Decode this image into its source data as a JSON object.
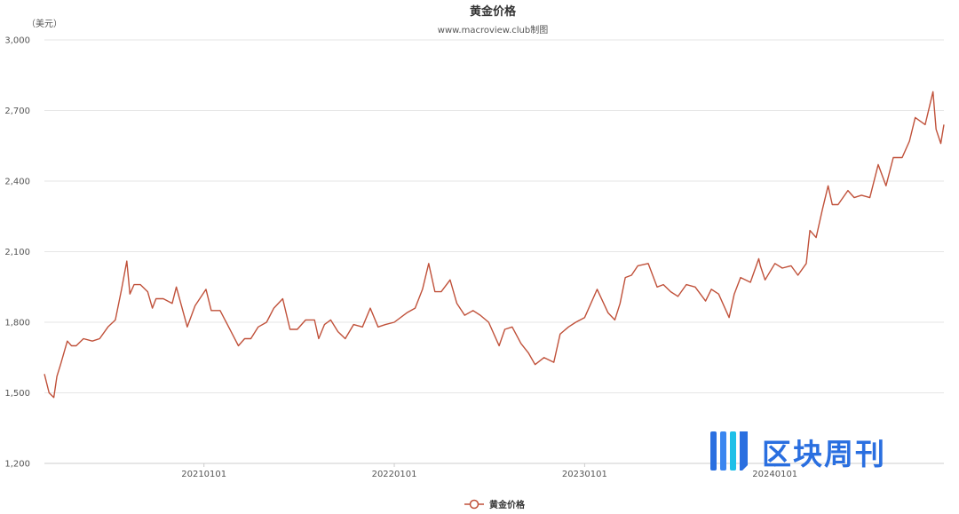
{
  "chart_data": {
    "type": "line",
    "title": "黄金价格",
    "subtitle": "www.macroview.club制图",
    "ylabel": "（美元）",
    "ylim": [
      1200,
      3000
    ],
    "yticks": [
      "1,200",
      "1,500",
      "1,800",
      "2,100",
      "2,400",
      "2,700",
      "3,000"
    ],
    "ytick_values": [
      1200,
      1500,
      1800,
      2100,
      2400,
      2700,
      3000
    ],
    "xlim": [
      "2020-03-01",
      "2024-11-20"
    ],
    "xticks": [
      "20210101",
      "20220101",
      "20230101",
      "20240101"
    ],
    "xtick_dates": [
      "2021-01-01",
      "2022-01-01",
      "2023-01-01",
      "2024-01-01"
    ],
    "grid": true,
    "legend_position": "bottom-center",
    "series": [
      {
        "name": "黄金价格",
        "color": "#c0513a",
        "x": [
          "2020-03-01",
          "2020-03-10",
          "2020-03-19",
          "2020-03-25",
          "2020-04-01",
          "2020-04-14",
          "2020-04-22",
          "2020-05-01",
          "2020-05-15",
          "2020-06-01",
          "2020-06-15",
          "2020-07-01",
          "2020-07-15",
          "2020-07-27",
          "2020-08-06",
          "2020-08-12",
          "2020-08-20",
          "2020-09-01",
          "2020-09-15",
          "2020-09-24",
          "2020-10-01",
          "2020-10-15",
          "2020-11-01",
          "2020-11-09",
          "2020-11-30",
          "2020-12-15",
          "2021-01-05",
          "2021-01-15",
          "2021-02-01",
          "2021-02-15",
          "2021-03-08",
          "2021-03-20",
          "2021-04-01",
          "2021-04-15",
          "2021-05-01",
          "2021-05-15",
          "2021-06-01",
          "2021-06-15",
          "2021-06-29",
          "2021-07-15",
          "2021-08-01",
          "2021-08-09",
          "2021-08-20",
          "2021-09-01",
          "2021-09-15",
          "2021-09-29",
          "2021-10-15",
          "2021-11-01",
          "2021-11-16",
          "2021-12-01",
          "2021-12-15",
          "2022-01-01",
          "2022-01-25",
          "2022-02-10",
          "2022-02-24",
          "2022-03-08",
          "2022-03-20",
          "2022-04-01",
          "2022-04-18",
          "2022-05-01",
          "2022-05-16",
          "2022-06-01",
          "2022-06-15",
          "2022-07-01",
          "2022-07-21",
          "2022-08-01",
          "2022-08-15",
          "2022-09-01",
          "2022-09-15",
          "2022-09-28",
          "2022-10-15",
          "2022-11-03",
          "2022-11-15",
          "2022-12-01",
          "2022-12-15",
          "2023-01-01",
          "2023-01-25",
          "2023-02-15",
          "2023-02-28",
          "2023-03-10",
          "2023-03-20",
          "2023-04-01",
          "2023-04-13",
          "2023-05-03",
          "2023-05-20",
          "2023-06-01",
          "2023-06-15",
          "2023-06-29",
          "2023-07-15",
          "2023-08-01",
          "2023-08-21",
          "2023-09-01",
          "2023-09-15",
          "2023-10-05",
          "2023-10-15",
          "2023-10-27",
          "2023-11-15",
          "2023-12-01",
          "2023-12-04",
          "2023-12-13",
          "2024-01-01",
          "2024-01-15",
          "2024-02-01",
          "2024-02-14",
          "2024-03-01",
          "2024-03-08",
          "2024-03-20",
          "2024-04-01",
          "2024-04-12",
          "2024-04-20",
          "2024-05-01",
          "2024-05-20",
          "2024-06-01",
          "2024-06-15",
          "2024-07-01",
          "2024-07-17",
          "2024-08-01",
          "2024-08-15",
          "2024-09-01",
          "2024-09-15",
          "2024-09-26",
          "2024-10-15",
          "2024-10-30",
          "2024-11-05",
          "2024-11-14",
          "2024-11-20"
        ],
        "y": [
          1580,
          1500,
          1480,
          1570,
          1620,
          1720,
          1700,
          1700,
          1730,
          1720,
          1730,
          1780,
          1810,
          1940,
          2060,
          1920,
          1960,
          1960,
          1930,
          1860,
          1900,
          1900,
          1880,
          1950,
          1780,
          1870,
          1940,
          1850,
          1850,
          1790,
          1700,
          1730,
          1730,
          1780,
          1800,
          1860,
          1900,
          1770,
          1770,
          1810,
          1810,
          1730,
          1790,
          1810,
          1760,
          1730,
          1790,
          1780,
          1860,
          1780,
          1790,
          1800,
          1840,
          1860,
          1940,
          2050,
          1930,
          1930,
          1980,
          1880,
          1830,
          1850,
          1830,
          1800,
          1700,
          1770,
          1780,
          1710,
          1670,
          1620,
          1650,
          1630,
          1750,
          1780,
          1800,
          1820,
          1940,
          1840,
          1810,
          1880,
          1990,
          2000,
          2040,
          2050,
          1950,
          1960,
          1930,
          1910,
          1960,
          1950,
          1890,
          1940,
          1920,
          1820,
          1920,
          1990,
          1970,
          2070,
          2040,
          1980,
          2050,
          2030,
          2040,
          2000,
          2050,
          2190,
          2160,
          2280,
          2380,
          2300,
          2300,
          2360,
          2330,
          2340,
          2330,
          2470,
          2380,
          2500,
          2500,
          2570,
          2670,
          2640,
          2780,
          2620,
          2560,
          2640
        ]
      }
    ]
  },
  "watermark": {
    "text": "区块周刊",
    "color": "#2a6fe0"
  }
}
